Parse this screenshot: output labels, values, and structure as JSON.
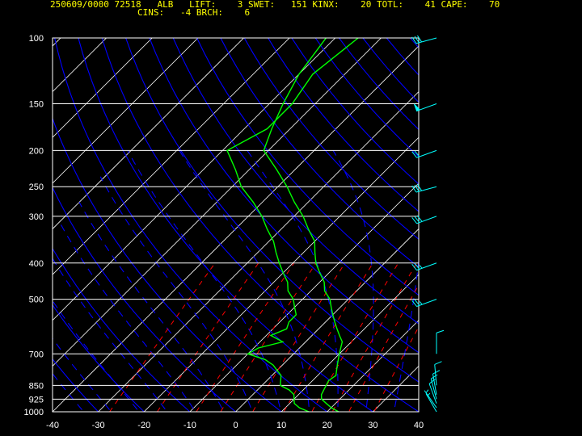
{
  "header": {
    "line1": "250609/0000 72518   ALB   LIFT:    3 SWET:   151 KINX:    20 TOTL:    41 CAPE:    70",
    "line2": "CINS:   -4 BRCH:    6"
  },
  "colors": {
    "background": "#000000",
    "frame": "#ffffff",
    "isobars": "#ffffff",
    "isotherms": "#ffffff",
    "dry_adiabats": "#0000ff",
    "moist_adiabats": "#0000ff",
    "mixing_ratio": "#ff0000",
    "temperature": "#00ff00",
    "dewpoint": "#00ff00",
    "wind_barbs": "#00ffff",
    "header_text": "#ffff00"
  },
  "chart_data": {
    "type": "skew-t",
    "title": "250609/0000 72518 ALB",
    "xlabel": "",
    "ylabel": "",
    "xlim": [
      -40,
      40
    ],
    "ylim": [
      1000,
      100
    ],
    "y_scale": "log",
    "grid": true,
    "x_ticks": [
      -40,
      -30,
      -20,
      -10,
      0,
      10,
      20,
      30,
      40
    ],
    "pressure_levels": [
      100,
      150,
      200,
      250,
      300,
      400,
      500,
      700,
      850,
      925,
      1000
    ],
    "indices": {
      "LIFT": 3,
      "SWET": 151,
      "KINX": 20,
      "TOTL": 41,
      "CAPE": 70,
      "CINS": -4,
      "BRCH": 6
    },
    "series": [
      {
        "name": "",
        "role": "temperature",
        "points": [
          [
            1000,
            22.5
          ],
          [
            975,
            20
          ],
          [
            950,
            18
          ],
          [
            925,
            16
          ],
          [
            900,
            15
          ],
          [
            875,
            14.5
          ],
          [
            850,
            14
          ],
          [
            825,
            13.5
          ],
          [
            800,
            14
          ],
          [
            775,
            13
          ],
          [
            750,
            12
          ],
          [
            725,
            11
          ],
          [
            700,
            10
          ],
          [
            675,
            9
          ],
          [
            650,
            8
          ],
          [
            625,
            6
          ],
          [
            600,
            4
          ],
          [
            575,
            2
          ],
          [
            550,
            0
          ],
          [
            525,
            -2
          ],
          [
            500,
            -4
          ],
          [
            475,
            -7
          ],
          [
            450,
            -9
          ],
          [
            425,
            -12
          ],
          [
            400,
            -15
          ],
          [
            375,
            -17.5
          ],
          [
            350,
            -20
          ],
          [
            325,
            -24
          ],
          [
            300,
            -28
          ],
          [
            275,
            -33
          ],
          [
            250,
            -38
          ],
          [
            225,
            -44
          ],
          [
            200,
            -51
          ],
          [
            175,
            -54
          ],
          [
            150,
            -57
          ],
          [
            125,
            -60
          ],
          [
            100,
            -62
          ]
        ]
      },
      {
        "name": "",
        "role": "dewpoint",
        "points": [
          [
            1000,
            16
          ],
          [
            975,
            13
          ],
          [
            950,
            11
          ],
          [
            925,
            10
          ],
          [
            900,
            9
          ],
          [
            875,
            7
          ],
          [
            850,
            4
          ],
          [
            825,
            3
          ],
          [
            800,
            2
          ],
          [
            775,
            0
          ],
          [
            750,
            -2
          ],
          [
            725,
            -5
          ],
          [
            700,
            -10
          ],
          [
            675,
            -9
          ],
          [
            650,
            -5
          ],
          [
            625,
            -9
          ],
          [
            600,
            -7
          ],
          [
            575,
            -8
          ],
          [
            550,
            -8
          ],
          [
            525,
            -10
          ],
          [
            500,
            -12
          ],
          [
            475,
            -15
          ],
          [
            450,
            -17
          ],
          [
            425,
            -20
          ],
          [
            400,
            -23
          ],
          [
            375,
            -26
          ],
          [
            350,
            -29
          ],
          [
            325,
            -33
          ],
          [
            300,
            -37
          ],
          [
            275,
            -42
          ],
          [
            250,
            -48
          ],
          [
            225,
            -53
          ],
          [
            200,
            -59
          ],
          [
            175,
            -55
          ],
          [
            150,
            -55
          ],
          [
            125,
            -57
          ],
          [
            100,
            -55
          ]
        ]
      }
    ],
    "wind_barbs": [
      {
        "p": 1000,
        "dir": 330,
        "kt": 5
      },
      {
        "p": 975,
        "dir": 325,
        "kt": 5
      },
      {
        "p": 950,
        "dir": 340,
        "kt": 10
      },
      {
        "p": 925,
        "dir": 345,
        "kt": 10
      },
      {
        "p": 900,
        "dir": 350,
        "kt": 10
      },
      {
        "p": 850,
        "dir": 355,
        "kt": 10
      },
      {
        "p": 700,
        "dir": 0,
        "kt": 10
      },
      {
        "p": 500,
        "dir": 250,
        "kt": 25
      },
      {
        "p": 400,
        "dir": 250,
        "kt": 25
      },
      {
        "p": 300,
        "dir": 250,
        "kt": 30
      },
      {
        "p": 250,
        "dir": 255,
        "kt": 30
      },
      {
        "p": 200,
        "dir": 250,
        "kt": 20
      },
      {
        "p": 150,
        "dir": 250,
        "kt": 50
      },
      {
        "p": 100,
        "dir": 255,
        "kt": 30
      }
    ]
  }
}
